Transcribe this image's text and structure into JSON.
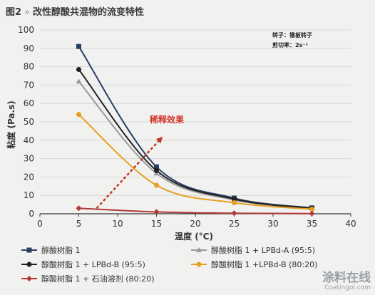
{
  "figure": {
    "label": "图2",
    "separator": "»",
    "title": "改性醇酸共混物的流变特性"
  },
  "notes": {
    "spindle": "转子：锥板转子",
    "shear_rate": "剪切率：2s⁻¹"
  },
  "annotation": {
    "text": "稀释效果"
  },
  "watermark": {
    "main": "涂料在线",
    "sub": "Coatingol.com"
  },
  "chart_data": {
    "type": "line",
    "title": "改性醇酸共混物的流变特性",
    "xlabel": "温度 (°C)",
    "ylabel": "粘度 (Pa.s)",
    "xlim": [
      0,
      40
    ],
    "ylim": [
      0,
      100
    ],
    "xticks": [
      0,
      5,
      10,
      15,
      20,
      25,
      30,
      35,
      40
    ],
    "yticks": [
      0,
      10,
      20,
      30,
      40,
      50,
      60,
      70,
      80,
      90,
      100
    ],
    "grid": "horizontal",
    "legend_position": "bottom",
    "x": [
      5,
      15,
      25,
      35
    ],
    "series": [
      {
        "name": "醇酸树脂 1",
        "values": [
          91,
          25.5,
          8.5,
          3.2
        ],
        "color": "#2a3f66",
        "marker": "square"
      },
      {
        "name": "醇酸树脂 1 + LPBd-A (95:5)",
        "values": [
          72,
          22,
          7.5,
          3.0
        ],
        "color": "#9a9a9a",
        "marker": "triangle"
      },
      {
        "name": "醇酸树脂 1 + LPBd-B (95:5)",
        "values": [
          78.5,
          23.5,
          8.0,
          3.0
        ],
        "color": "#222222",
        "marker": "circle"
      },
      {
        "name": "醇酸树脂 1 +LPBd-B (80:20)",
        "values": [
          54,
          15.5,
          6.0,
          2.5
        ],
        "color": "#e6a020",
        "marker": "circle"
      },
      {
        "name": "醇酸树脂 1 + 石油溶剂 (80:20)",
        "values": [
          3.0,
          1.0,
          0.3,
          0.1
        ],
        "color": "#b03a3a",
        "marker": "diamond"
      }
    ]
  }
}
